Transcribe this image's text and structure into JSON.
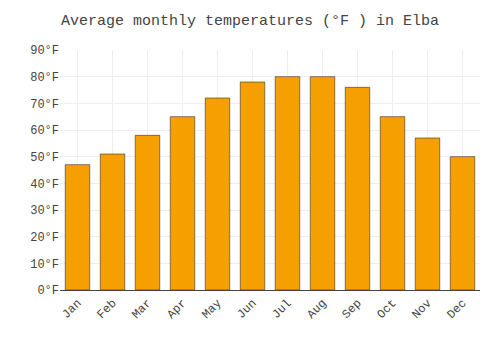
{
  "chart_data": {
    "type": "bar",
    "title": "Average monthly temperatures (°F ) in Elba",
    "categories": [
      "Jan",
      "Feb",
      "Mar",
      "Apr",
      "May",
      "Jun",
      "Jul",
      "Aug",
      "Sep",
      "Oct",
      "Nov",
      "Dec"
    ],
    "values": [
      47,
      51,
      58,
      65,
      72,
      78,
      80,
      80,
      76,
      65,
      57,
      50
    ],
    "color": "#F5A000",
    "ylim": [
      0,
      90
    ],
    "yticks": [
      {
        "value": 0,
        "label": "0°F"
      },
      {
        "value": 10,
        "label": "10°F"
      },
      {
        "value": 20,
        "label": "20°F"
      },
      {
        "value": 30,
        "label": "30°F"
      },
      {
        "value": 40,
        "label": "40°F"
      },
      {
        "value": 50,
        "label": "50°F"
      },
      {
        "value": 60,
        "label": "60°F"
      },
      {
        "value": 70,
        "label": "70°F"
      },
      {
        "value": 80,
        "label": "80°F"
      },
      {
        "value": 90,
        "label": "90°F"
      }
    ],
    "grid": true
  }
}
